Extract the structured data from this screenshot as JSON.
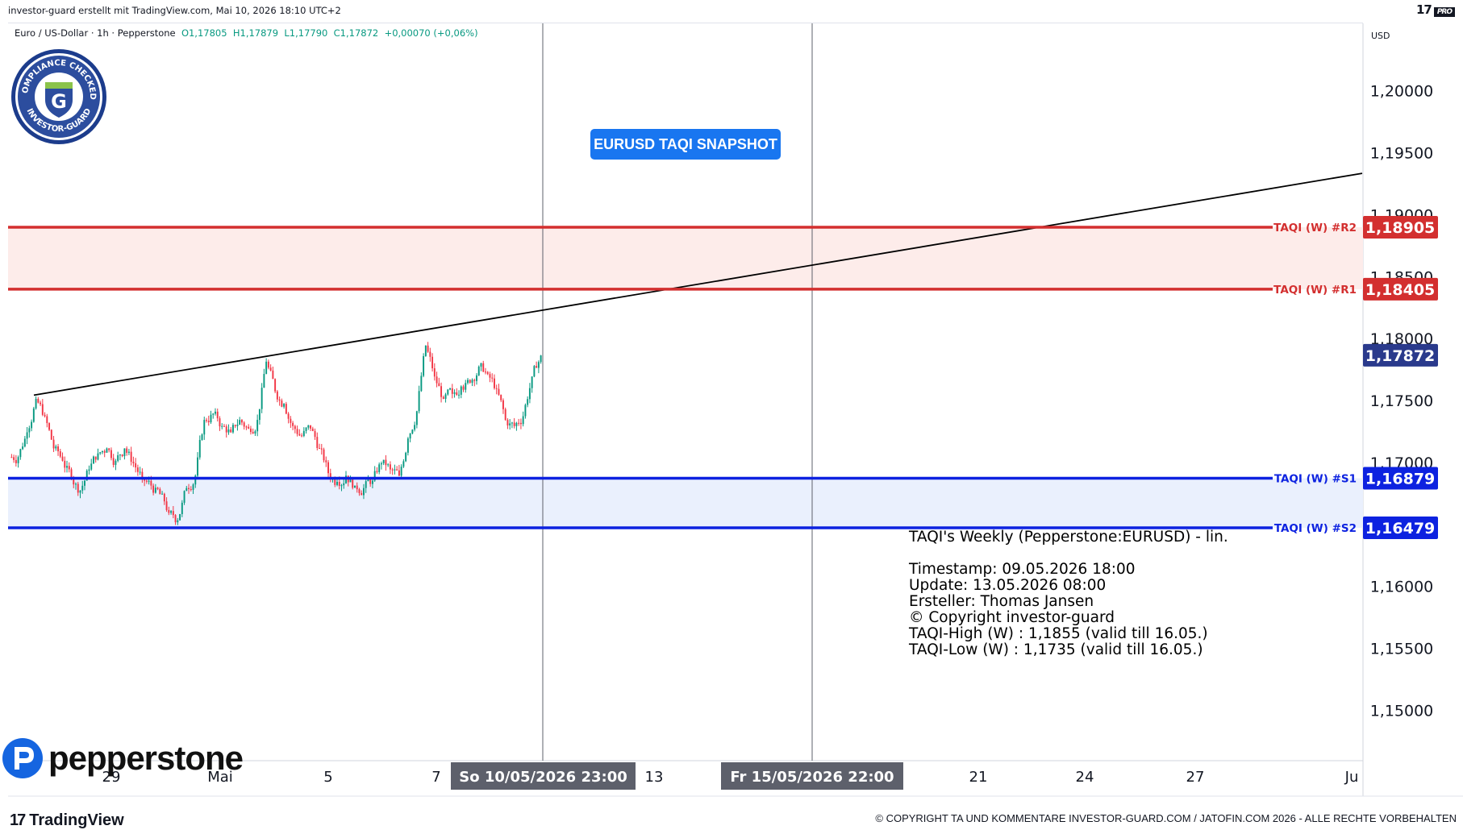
{
  "header": {
    "author_line": "investor-guard erstellt mit TradingView.com, Mai 10, 2026 18:10 UTC+2",
    "tv_logo": "17",
    "tv_pro": "PRO"
  },
  "symbol": {
    "name": "Euro / US-Dollar · 1h · Pepperstone",
    "open": "O1,17805",
    "high": "H1,17879",
    "low": "L1,17790",
    "close": "C1,17872",
    "change": "+0,00070 (+0,06%)"
  },
  "currency_label": "USD",
  "snapshot_button": "EURUSD TAQI SNAPSHOT",
  "annotation": {
    "title": "TAQI's Weekly (Pepperstone:EURUSD) - lin.",
    "lines": [
      "Timestamp: 09.05.2026 18:00",
      "Update: 13.05.2026 08:00",
      "Ersteller: Thomas Jansen",
      "© Copyright investor-guard",
      "TAQI-High (W) : 1,1855 (valid till 16.05.)",
      "TAQI-Low (W) : 1,1735 (valid till 16.05.)"
    ]
  },
  "badge": {
    "top_text": "COMPLIANCE CHECKED",
    "bottom_text": "INVESTOR-GUARD",
    "letter": "G"
  },
  "branding": {
    "pepperstone": "pepperstone",
    "tradingview": "TradingView",
    "copyright": "© COPYRIGHT TA UND KOMMENTARE INVESTOR-GUARD.COM / JATOFIN.COM 2026 - ALLE RECHTE VORBEHALTEN"
  },
  "colors": {
    "up": "#089981",
    "down": "#f23645",
    "resistance": "#d32f2f",
    "support": "#0d22e0",
    "last_price": "#2a3a8c",
    "snapshot": "#1976f0"
  },
  "chart_data": {
    "type": "candlestick",
    "symbol": "EURUSD",
    "timeframe": "1h",
    "ylim": [
      1.146,
      1.2055
    ],
    "y_ticks": [
      "1,20000",
      "1,19500",
      "1,19000",
      "1,18500",
      "1,18000",
      "1,17500",
      "1,17000",
      "1,16000",
      "1,15500",
      "1,15000"
    ],
    "x_ticks": [
      "29",
      "Mai",
      "5",
      "7",
      "13",
      "21",
      "24",
      "27",
      "Ju"
    ],
    "crosshair_labels": [
      "So 10/05/2026   23:00",
      "Fr 15/05/2026   22:00"
    ],
    "levels": [
      {
        "name": "TAQI (W) #R2",
        "value": 1.18905,
        "label": "1,18905",
        "kind": "resistance"
      },
      {
        "name": "TAQI (W) #R1",
        "value": 1.18405,
        "label": "1,18405",
        "kind": "resistance"
      },
      {
        "name": "TAQI (W) #S1",
        "value": 1.16879,
        "label": "1,16879",
        "kind": "support"
      },
      {
        "name": "TAQI (W) #S2",
        "value": 1.16479,
        "label": "1,16479",
        "kind": "support"
      }
    ],
    "last_price": {
      "value": 1.17872,
      "label": "1,17872"
    },
    "price_path": [
      1.1705,
      1.1725,
      1.1752,
      1.1738,
      1.1712,
      1.1702,
      1.1688,
      1.1678,
      1.1695,
      1.1708,
      1.1712,
      1.1702,
      1.1712,
      1.17,
      1.1688,
      1.1682,
      1.1675,
      1.166,
      1.1654,
      1.168,
      1.169,
      1.1735,
      1.174,
      1.173,
      1.1725,
      1.1735,
      1.1728,
      1.1735,
      1.1782,
      1.1758,
      1.1748,
      1.173,
      1.1722,
      1.1728,
      1.1712,
      1.1692,
      1.1685,
      1.169,
      1.1682,
      1.168,
      1.1686,
      1.17,
      1.1695,
      1.169,
      1.172,
      1.1742,
      1.1795,
      1.177,
      1.1752,
      1.1756,
      1.1762,
      1.1765,
      1.1778,
      1.1772,
      1.176,
      1.1735,
      1.173,
      1.1738,
      1.177,
      1.1787
    ]
  }
}
